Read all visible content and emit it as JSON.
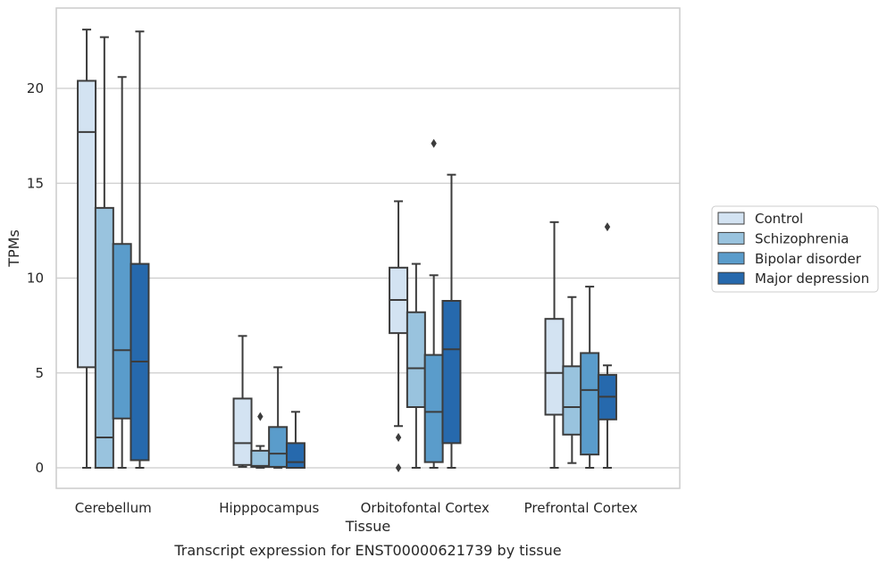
{
  "chart_data": {
    "type": "box",
    "caption": "Transcript expression for ENST00000621739 by tissue",
    "xlabel": "Tissue",
    "ylabel": "TPMs",
    "ylim": [
      -1.1,
      24.2
    ],
    "yticks": [
      0,
      5,
      10,
      15,
      20
    ],
    "grid": "horizontal",
    "legend_position": "right",
    "categories": [
      "Cerebellum",
      "Hipppocampus",
      "Orbitofontal Cortex",
      "Prefrontal Cortex"
    ],
    "series": [
      {
        "name": "Control",
        "color": "#d3e3f2",
        "boxes": [
          {
            "whislo": 0,
            "q1": 5.3,
            "med": 17.7,
            "q3": 20.4,
            "whishi": 23.1,
            "fliers": []
          },
          {
            "whislo": 0.05,
            "q1": 0.15,
            "med": 1.3,
            "q3": 3.65,
            "whishi": 6.95,
            "fliers": []
          },
          {
            "whislo": 2.2,
            "q1": 7.1,
            "med": 8.85,
            "q3": 10.55,
            "whishi": 14.05,
            "fliers": [
              1.6,
              0.0
            ]
          },
          {
            "whislo": 0,
            "q1": 2.8,
            "med": 5.0,
            "q3": 7.85,
            "whishi": 12.95,
            "fliers": []
          }
        ]
      },
      {
        "name": "Schizophrenia",
        "color": "#99c3de",
        "boxes": [
          {
            "whislo": 0,
            "q1": 0,
            "med": 1.6,
            "q3": 13.7,
            "whishi": 22.7,
            "fliers": []
          },
          {
            "whislo": 0,
            "q1": 0.05,
            "med": 0.1,
            "q3": 0.9,
            "whishi": 1.15,
            "fliers": [
              2.7
            ]
          },
          {
            "whislo": 0,
            "q1": 3.2,
            "med": 5.25,
            "q3": 8.2,
            "whishi": 10.75,
            "fliers": []
          },
          {
            "whislo": 0.25,
            "q1": 1.75,
            "med": 3.2,
            "q3": 5.35,
            "whishi": 9.0,
            "fliers": []
          }
        ]
      },
      {
        "name": "Bipolar disorder",
        "color": "#5a9ccb",
        "boxes": [
          {
            "whislo": 0,
            "q1": 2.6,
            "med": 6.2,
            "q3": 11.8,
            "whishi": 20.6,
            "fliers": []
          },
          {
            "whislo": 0,
            "q1": 0.05,
            "med": 0.75,
            "q3": 2.15,
            "whishi": 5.3,
            "fliers": []
          },
          {
            "whislo": 0,
            "q1": 0.3,
            "med": 2.95,
            "q3": 5.95,
            "whishi": 10.15,
            "fliers": [
              17.1
            ]
          },
          {
            "whislo": 0,
            "q1": 0.7,
            "med": 4.1,
            "q3": 6.05,
            "whishi": 9.55,
            "fliers": []
          }
        ]
      },
      {
        "name": "Major depression",
        "color": "#2669ad",
        "boxes": [
          {
            "whislo": 0,
            "q1": 0.4,
            "med": 5.6,
            "q3": 10.75,
            "whishi": 23.0,
            "fliers": []
          },
          {
            "whislo": 0,
            "q1": 0,
            "med": 0.3,
            "q3": 1.3,
            "whishi": 2.95,
            "fliers": []
          },
          {
            "whislo": 0,
            "q1": 1.3,
            "med": 6.25,
            "q3": 8.8,
            "whishi": 15.45,
            "fliers": []
          },
          {
            "whislo": 0,
            "q1": 2.55,
            "med": 3.75,
            "q3": 4.9,
            "whishi": 5.4,
            "fliers": [
              12.7
            ]
          }
        ]
      }
    ]
  }
}
